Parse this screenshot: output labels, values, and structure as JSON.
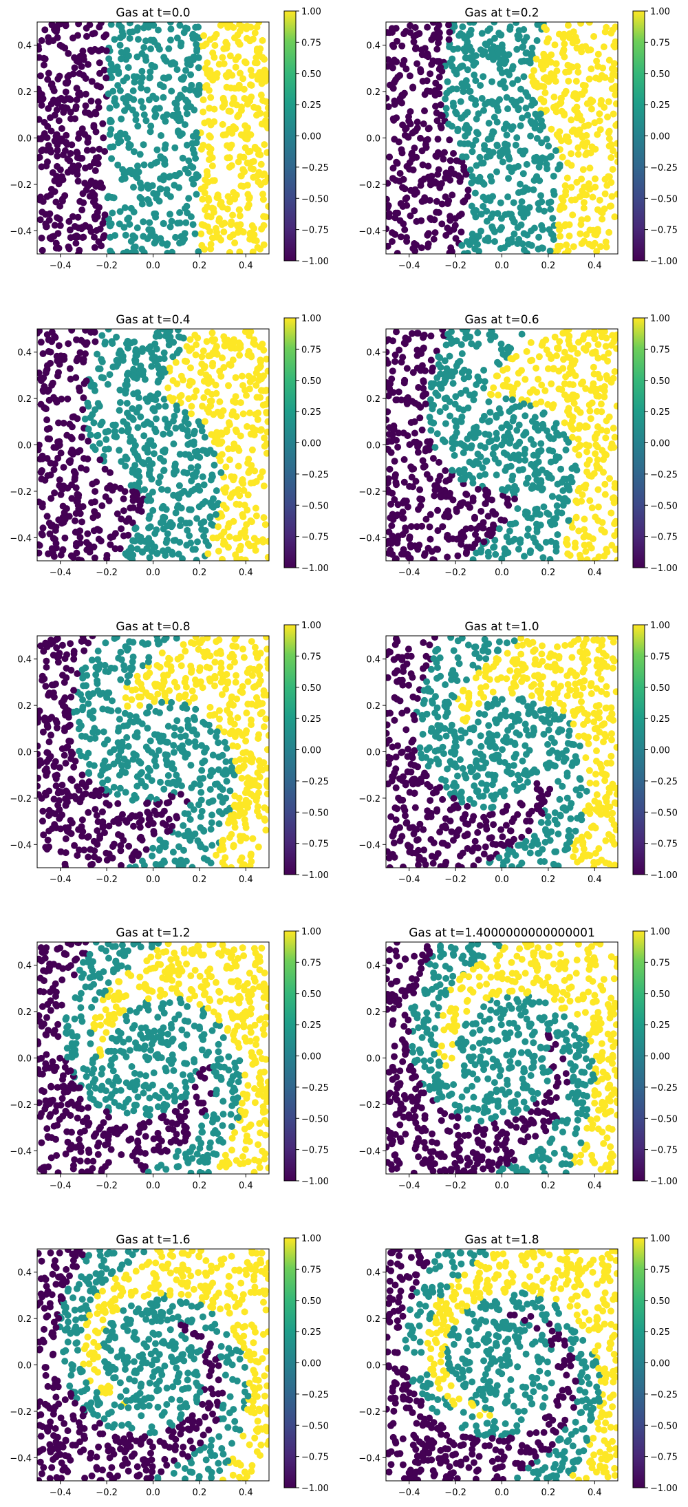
{
  "figure": {
    "colormap": "viridis",
    "colors": {
      "low": "#440154",
      "mid": "#21918c",
      "high": "#fde725"
    }
  },
  "chart_data": [
    {
      "type": "scatter",
      "title": "Gas at t=0.0",
      "time": 0.0,
      "xlim": [
        -0.5,
        0.5
      ],
      "ylim": [
        -0.5,
        0.5
      ],
      "x_ticks": [
        "−0.4",
        "−0.2",
        "0.0",
        "0.2",
        "0.4"
      ],
      "y_ticks": [
        "0.4",
        "0.2",
        "0.0",
        "−0.2",
        "−0.4"
      ],
      "colorbar": {
        "range": [
          -1.0,
          1.0
        ],
        "ticks": [
          "1.00",
          "0.75",
          "0.50",
          "0.25",
          "0.00",
          "−0.25",
          "−0.50",
          "−0.75",
          "−1.00"
        ]
      },
      "pattern": "vertical bands: purple x<-0.2, teal -0.2..0.2, yellow x>0.2",
      "num_points": 1000
    },
    {
      "type": "scatter",
      "title": "Gas at t=0.2",
      "time": 0.2,
      "xlim": [
        -0.5,
        0.5
      ],
      "ylim": [
        -0.5,
        0.5
      ],
      "x_ticks": [
        "−0.4",
        "−0.2",
        "0.0",
        "0.2",
        "0.4"
      ],
      "y_ticks": [
        "0.4",
        "0.2",
        "0.0",
        "−0.2",
        "−0.4"
      ],
      "colorbar": {
        "range": [
          -1.0,
          1.0
        ],
        "ticks": [
          "1.00",
          "0.75",
          "0.50",
          "0.25",
          "0.00",
          "−0.25",
          "−0.50",
          "−0.75",
          "−1.00"
        ]
      },
      "num_points": 1000
    },
    {
      "type": "scatter",
      "title": "Gas at t=0.4",
      "time": 0.4,
      "xlim": [
        -0.5,
        0.5
      ],
      "ylim": [
        -0.5,
        0.5
      ],
      "x_ticks": [
        "−0.4",
        "−0.2",
        "0.0",
        "0.2",
        "0.4"
      ],
      "y_ticks": [
        "0.4",
        "0.2",
        "0.0",
        "−0.2",
        "−0.4"
      ],
      "colorbar": {
        "range": [
          -1.0,
          1.0
        ],
        "ticks": [
          "1.00",
          "0.75",
          "0.50",
          "0.25",
          "0.00",
          "−0.25",
          "−0.50",
          "−0.75",
          "−1.00"
        ]
      },
      "num_points": 1000
    },
    {
      "type": "scatter",
      "title": "Gas at t=0.6",
      "time": 0.6,
      "xlim": [
        -0.5,
        0.5
      ],
      "ylim": [
        -0.5,
        0.5
      ],
      "x_ticks": [
        "−0.4",
        "−0.2",
        "0.0",
        "0.2",
        "0.4"
      ],
      "y_ticks": [
        "0.4",
        "0.2",
        "0.0",
        "−0.2",
        "−0.4"
      ],
      "colorbar": {
        "range": [
          -1.0,
          1.0
        ],
        "ticks": [
          "1.00",
          "0.75",
          "0.50",
          "0.25",
          "0.00",
          "−0.25",
          "−0.50",
          "−0.75",
          "−1.00"
        ]
      },
      "num_points": 1000
    },
    {
      "type": "scatter",
      "title": "Gas at t=0.8",
      "time": 0.8,
      "xlim": [
        -0.5,
        0.5
      ],
      "ylim": [
        -0.5,
        0.5
      ],
      "x_ticks": [
        "−0.4",
        "−0.2",
        "0.0",
        "0.2",
        "0.4"
      ],
      "y_ticks": [
        "0.4",
        "0.2",
        "0.0",
        "−0.2",
        "−0.4"
      ],
      "colorbar": {
        "range": [
          -1.0,
          1.0
        ],
        "ticks": [
          "1.00",
          "0.75",
          "0.50",
          "0.25",
          "0.00",
          "−0.25",
          "−0.50",
          "−0.75",
          "−1.00"
        ]
      },
      "num_points": 1000
    },
    {
      "type": "scatter",
      "title": "Gas at t=1.0",
      "time": 1.0,
      "xlim": [
        -0.5,
        0.5
      ],
      "ylim": [
        -0.5,
        0.5
      ],
      "x_ticks": [
        "−0.4",
        "−0.2",
        "0.0",
        "0.2",
        "0.4"
      ],
      "y_ticks": [
        "0.4",
        "0.2",
        "0.0",
        "−0.2",
        "−0.4"
      ],
      "colorbar": {
        "range": [
          -1.0,
          1.0
        ],
        "ticks": [
          "1.00",
          "0.75",
          "0.50",
          "0.25",
          "0.00",
          "−0.25",
          "−0.50",
          "−0.75",
          "−1.00"
        ]
      },
      "num_points": 1000
    },
    {
      "type": "scatter",
      "title": "Gas at t=1.2",
      "time": 1.2,
      "xlim": [
        -0.5,
        0.5
      ],
      "ylim": [
        -0.5,
        0.5
      ],
      "x_ticks": [
        "−0.4",
        "−0.2",
        "0.0",
        "0.2",
        "0.4"
      ],
      "y_ticks": [
        "0.4",
        "0.2",
        "0.0",
        "−0.2",
        "−0.4"
      ],
      "colorbar": {
        "range": [
          -1.0,
          1.0
        ],
        "ticks": [
          "1.00",
          "0.75",
          "0.50",
          "0.25",
          "0.00",
          "−0.25",
          "−0.50",
          "−0.75",
          "−1.00"
        ]
      },
      "num_points": 1000
    },
    {
      "type": "scatter",
      "title": "Gas at t=1.4000000000000001",
      "time": 1.4,
      "xlim": [
        -0.5,
        0.5
      ],
      "ylim": [
        -0.5,
        0.5
      ],
      "x_ticks": [
        "−0.4",
        "−0.2",
        "0.0",
        "0.2",
        "0.4"
      ],
      "y_ticks": [
        "0.4",
        "0.2",
        "0.0",
        "−0.2",
        "−0.4"
      ],
      "colorbar": {
        "range": [
          -1.0,
          1.0
        ],
        "ticks": [
          "1.00",
          "0.75",
          "0.50",
          "0.25",
          "0.00",
          "−0.25",
          "−0.50",
          "−0.75",
          "−1.00"
        ]
      },
      "num_points": 1000
    },
    {
      "type": "scatter",
      "title": "Gas at t=1.6",
      "time": 1.6,
      "xlim": [
        -0.5,
        0.5
      ],
      "ylim": [
        -0.5,
        0.5
      ],
      "x_ticks": [
        "−0.4",
        "−0.2",
        "0.0",
        "0.2",
        "0.4"
      ],
      "y_ticks": [
        "0.4",
        "0.2",
        "0.0",
        "−0.2",
        "−0.4"
      ],
      "colorbar": {
        "range": [
          -1.0,
          1.0
        ],
        "ticks": [
          "1.00",
          "0.75",
          "0.50",
          "0.25",
          "0.00",
          "−0.25",
          "−0.50",
          "−0.75",
          "−1.00"
        ]
      },
      "num_points": 1000
    },
    {
      "type": "scatter",
      "title": "Gas at t=1.8",
      "time": 1.8,
      "xlim": [
        -0.5,
        0.5
      ],
      "ylim": [
        -0.5,
        0.5
      ],
      "x_ticks": [
        "−0.4",
        "−0.2",
        "0.0",
        "0.2",
        "0.4"
      ],
      "y_ticks": [
        "0.4",
        "0.2",
        "0.0",
        "−0.2",
        "−0.4"
      ],
      "colorbar": {
        "range": [
          -1.0,
          1.0
        ],
        "ticks": [
          "1.00",
          "0.75",
          "0.50",
          "0.25",
          "0.00",
          "−0.25",
          "−0.50",
          "−0.75",
          "−1.00"
        ]
      },
      "num_points": 1000
    }
  ]
}
